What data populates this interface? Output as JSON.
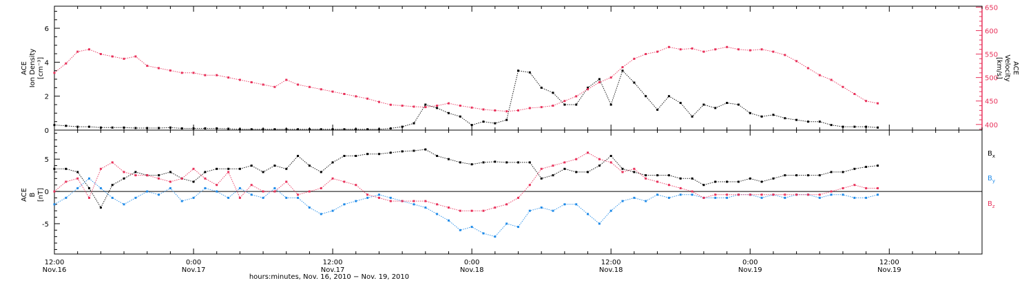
{
  "chart_data": [
    {
      "type": "scatter",
      "panel": "top",
      "ylabel_left": [
        "ACE",
        "Ion Density",
        "[cm⁻³]"
      ],
      "ylabel_right": [
        "ACE",
        "Velocity",
        "[km/s]"
      ],
      "ylim_left": [
        0,
        7.3
      ],
      "ylim_right": [
        388,
        652
      ],
      "yticks_left": [
        "0",
        "2",
        "4",
        "6"
      ],
      "yticks_right": [
        "400",
        "450",
        "500",
        "550",
        "600",
        "650"
      ],
      "series": [
        {
          "role": "density",
          "axis": "left",
          "color": "#000000",
          "x_hours": [
            0,
            1,
            2,
            3,
            4,
            5,
            6,
            7,
            8,
            9,
            10,
            11,
            12,
            13,
            14,
            15,
            16,
            17,
            18,
            19,
            20,
            21,
            22,
            23,
            24,
            25,
            26,
            27,
            28,
            29,
            30,
            31,
            32,
            33,
            34,
            35,
            36,
            37,
            38,
            39,
            40,
            41,
            42,
            43,
            44,
            45,
            46,
            47,
            48,
            49,
            50,
            51,
            52,
            53,
            54,
            55,
            56,
            57,
            58,
            59,
            60,
            61,
            62,
            63,
            64,
            65,
            66,
            67,
            68,
            69,
            70,
            71
          ],
          "values": [
            0.3,
            0.25,
            0.2,
            0.2,
            0.15,
            0.15,
            0.15,
            0.12,
            0.12,
            0.12,
            0.15,
            0.1,
            0.1,
            0.1,
            0.1,
            0.08,
            0.05,
            0.05,
            0.05,
            0.05,
            0.05,
            0.05,
            0.05,
            0.05,
            0.05,
            0.05,
            0.05,
            0.05,
            0.05,
            0.1,
            0.2,
            0.4,
            1.5,
            1.3,
            1.0,
            0.8,
            0.3,
            0.5,
            0.4,
            0.6,
            3.5,
            3.4,
            2.5,
            2.2,
            1.5,
            1.5,
            2.5,
            3.0,
            1.5,
            3.5,
            2.8,
            2.0,
            1.2,
            2.0,
            1.6,
            0.8,
            1.5,
            1.3,
            1.6,
            1.5,
            1.0,
            0.8,
            0.9,
            0.7,
            0.6,
            0.5,
            0.5,
            0.3,
            0.2,
            0.2,
            0.2,
            0.15
          ]
        },
        {
          "role": "velocity",
          "axis": "right",
          "color": "#e8315a",
          "x_hours": [
            0,
            1,
            2,
            3,
            4,
            5,
            6,
            7,
            8,
            9,
            10,
            11,
            12,
            13,
            14,
            15,
            16,
            17,
            18,
            19,
            20,
            21,
            22,
            23,
            24,
            25,
            26,
            27,
            28,
            29,
            30,
            31,
            32,
            33,
            34,
            35,
            36,
            37,
            38,
            39,
            40,
            41,
            42,
            43,
            44,
            45,
            46,
            47,
            48,
            49,
            50,
            51,
            52,
            53,
            54,
            55,
            56,
            57,
            58,
            59,
            60,
            61,
            62,
            63,
            64,
            65,
            66,
            67,
            68,
            69,
            70,
            71
          ],
          "values": [
            510,
            530,
            555,
            560,
            550,
            545,
            540,
            545,
            525,
            520,
            515,
            510,
            510,
            505,
            505,
            500,
            495,
            490,
            485,
            480,
            495,
            485,
            480,
            475,
            470,
            465,
            460,
            455,
            448,
            442,
            440,
            438,
            437,
            440,
            445,
            440,
            436,
            432,
            430,
            428,
            430,
            435,
            437,
            440,
            450,
            460,
            475,
            490,
            500,
            522,
            540,
            550,
            555,
            565,
            560,
            562,
            555,
            560,
            565,
            560,
            558,
            560,
            555,
            548,
            535,
            520,
            505,
            495,
            480,
            465,
            450,
            445
          ]
        }
      ]
    },
    {
      "type": "scatter",
      "panel": "bottom",
      "ylabel_left": [
        "ACE",
        "B",
        "[nT]"
      ],
      "ylim": [
        -9.7,
        9.5
      ],
      "yticks_left": [
        "-5",
        "0",
        "5"
      ],
      "series": [
        {
          "name": "Bx",
          "label_main": "B",
          "label_sub": "x",
          "color": "#000000",
          "x_hours": [
            0,
            1,
            2,
            3,
            4,
            5,
            6,
            7,
            8,
            9,
            10,
            11,
            12,
            13,
            14,
            15,
            16,
            17,
            18,
            19,
            20,
            21,
            22,
            23,
            24,
            25,
            26,
            27,
            28,
            29,
            30,
            31,
            32,
            33,
            34,
            35,
            36,
            37,
            38,
            39,
            40,
            41,
            42,
            43,
            44,
            45,
            46,
            47,
            48,
            49,
            50,
            51,
            52,
            53,
            54,
            55,
            56,
            57,
            58,
            59,
            60,
            61,
            62,
            63,
            64,
            65,
            66,
            67,
            68,
            69,
            70,
            71
          ],
          "values": [
            3.5,
            3.5,
            3.0,
            0.5,
            -2.5,
            1.0,
            2.0,
            3.0,
            2.5,
            2.5,
            3.0,
            2.0,
            1.5,
            3.0,
            3.5,
            3.5,
            3.5,
            4.0,
            3.0,
            4.0,
            3.5,
            5.5,
            4.0,
            3.0,
            4.5,
            5.5,
            5.5,
            5.8,
            5.8,
            6.0,
            6.2,
            6.3,
            6.5,
            5.5,
            5.0,
            4.5,
            4.2,
            4.5,
            4.6,
            4.5,
            4.5,
            4.5,
            2.0,
            2.5,
            3.5,
            3.0,
            3.0,
            4.0,
            5.5,
            3.5,
            3.0,
            2.5,
            2.5,
            2.5,
            2.0,
            2.0,
            1.0,
            1.5,
            1.5,
            1.5,
            2.0,
            1.5,
            2.0,
            2.5,
            2.5,
            2.5,
            2.5,
            3.0,
            3.0,
            3.5,
            3.8,
            4.0
          ]
        },
        {
          "name": "By",
          "label_main": "B",
          "label_sub": "y",
          "color": "#1e8ae8",
          "x_hours": [
            0,
            1,
            2,
            3,
            4,
            5,
            6,
            7,
            8,
            9,
            10,
            11,
            12,
            13,
            14,
            15,
            16,
            17,
            18,
            19,
            20,
            21,
            22,
            23,
            24,
            25,
            26,
            27,
            28,
            29,
            30,
            31,
            32,
            33,
            34,
            35,
            36,
            37,
            38,
            39,
            40,
            41,
            42,
            43,
            44,
            45,
            46,
            47,
            48,
            49,
            50,
            51,
            52,
            53,
            54,
            55,
            56,
            57,
            58,
            59,
            60,
            61,
            62,
            63,
            64,
            65,
            66,
            67,
            68,
            69,
            70,
            71
          ],
          "values": [
            -2.0,
            -1.0,
            0.5,
            2.0,
            0.5,
            -1.0,
            -2.0,
            -1.0,
            0.0,
            -0.5,
            0.5,
            -1.5,
            -1.0,
            0.5,
            0.0,
            -1.0,
            0.5,
            -0.5,
            -1.0,
            0.5,
            -1.0,
            -1.0,
            -2.5,
            -3.5,
            -3.0,
            -2.0,
            -1.5,
            -1.0,
            -0.5,
            -1.0,
            -1.5,
            -2.0,
            -2.5,
            -3.5,
            -4.5,
            -6.0,
            -5.5,
            -6.5,
            -7.0,
            -5.0,
            -5.5,
            -3.0,
            -2.5,
            -3.0,
            -2.0,
            -2.0,
            -3.5,
            -5.0,
            -3.0,
            -1.5,
            -1.0,
            -1.5,
            -0.5,
            -1.0,
            -0.5,
            -0.5,
            -1.0,
            -1.0,
            -1.0,
            -0.5,
            -0.5,
            -1.0,
            -0.5,
            -1.0,
            -0.5,
            -0.5,
            -1.0,
            -0.5,
            -0.5,
            -1.0,
            -1.0,
            -0.5
          ]
        },
        {
          "name": "Bz",
          "label_main": "B",
          "label_sub": "z",
          "color": "#e8315a",
          "x_hours": [
            0,
            1,
            2,
            3,
            4,
            5,
            6,
            7,
            8,
            9,
            10,
            11,
            12,
            13,
            14,
            15,
            16,
            17,
            18,
            19,
            20,
            21,
            22,
            23,
            24,
            25,
            26,
            27,
            28,
            29,
            30,
            31,
            32,
            33,
            34,
            35,
            36,
            37,
            38,
            39,
            40,
            41,
            42,
            43,
            44,
            45,
            46,
            47,
            48,
            49,
            50,
            51,
            52,
            53,
            54,
            55,
            56,
            57,
            58,
            59,
            60,
            61,
            62,
            63,
            64,
            65,
            66,
            67,
            68,
            69,
            70,
            71
          ],
          "values": [
            0.0,
            1.5,
            2.0,
            -1.0,
            3.5,
            4.5,
            3.0,
            2.5,
            2.5,
            2.0,
            1.5,
            2.0,
            3.5,
            2.0,
            1.0,
            3.0,
            -1.0,
            1.0,
            0.0,
            0.0,
            1.5,
            -0.5,
            0.0,
            0.5,
            2.0,
            1.5,
            1.0,
            -0.5,
            -1.0,
            -1.5,
            -1.5,
            -1.5,
            -1.5,
            -2.0,
            -2.5,
            -3.0,
            -3.0,
            -3.0,
            -2.5,
            -2.0,
            -1.0,
            1.0,
            3.5,
            4.0,
            4.5,
            5.0,
            6.0,
            5.0,
            4.5,
            3.0,
            3.5,
            2.0,
            1.5,
            1.0,
            0.5,
            0.0,
            -1.0,
            -0.5,
            -0.5,
            -0.5,
            -0.5,
            -0.5,
            -0.5,
            -0.5,
            -0.5,
            -0.5,
            -0.5,
            0.0,
            0.5,
            1.0,
            0.5,
            0.5
          ]
        }
      ]
    }
  ],
  "time_axis": {
    "ticks": [
      {
        "time": "12:00",
        "date": "Nov.16"
      },
      {
        "time": "0:00",
        "date": "Nov.17"
      },
      {
        "time": "12:00",
        "date": "Nov.17"
      },
      {
        "time": "0:00",
        "date": "Nov.18"
      },
      {
        "time": "12:00",
        "date": "Nov.18"
      },
      {
        "time": "0:00",
        "date": "Nov.19"
      },
      {
        "time": "12:00",
        "date": "Nov.19"
      }
    ],
    "xlim_hours": [
      0,
      80
    ],
    "xlabel": "hours:minutes, Nov. 16, 2010 − Nov. 19, 2010"
  }
}
